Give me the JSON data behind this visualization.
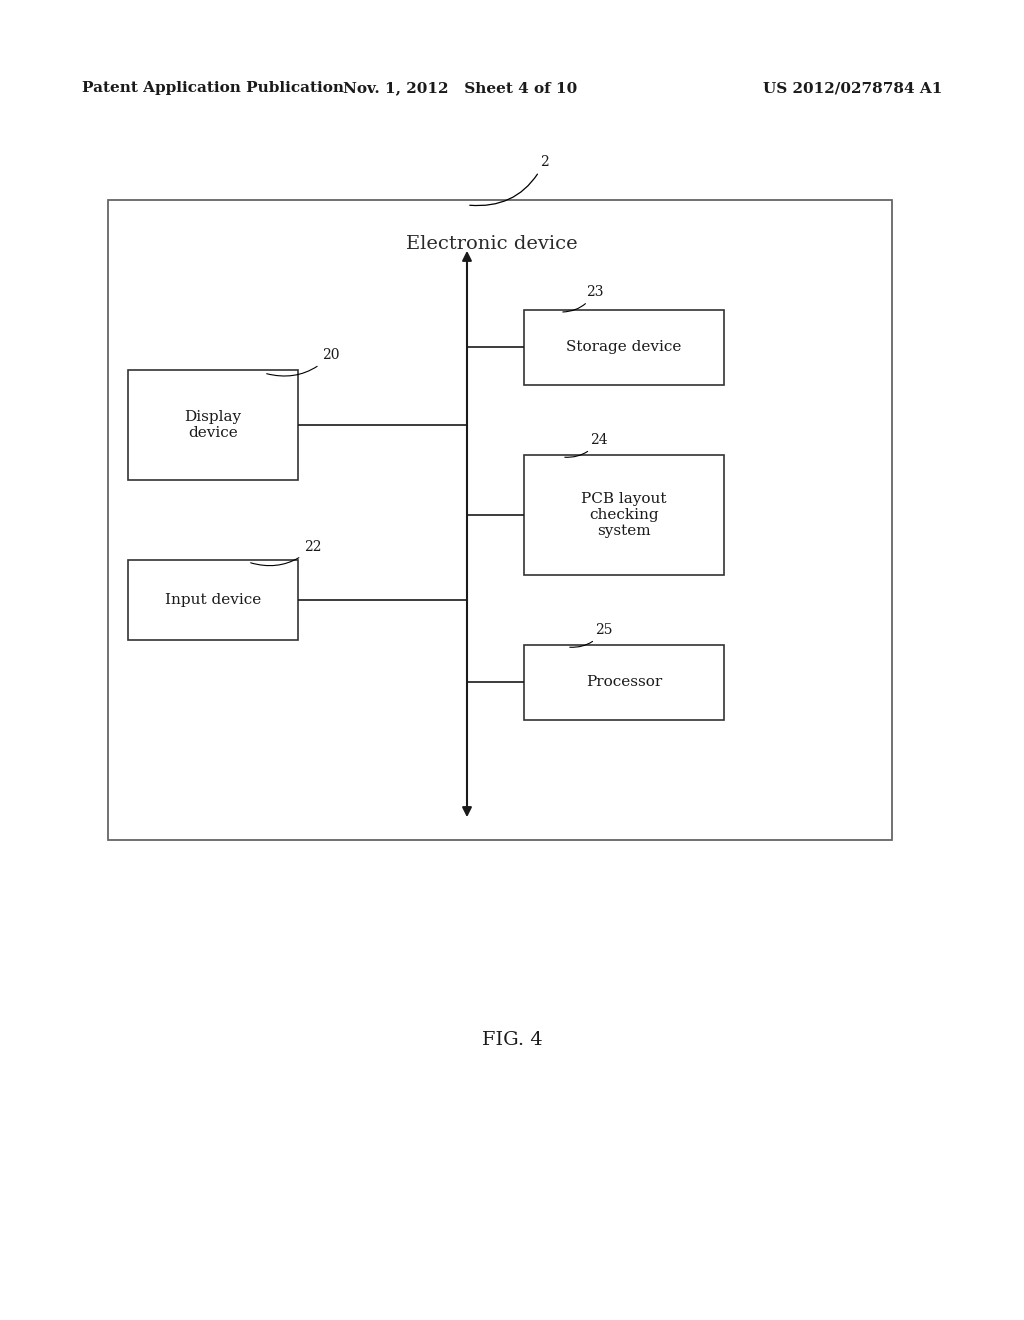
{
  "bg_color": "#ffffff",
  "header_left": "Patent Application Publication",
  "header_mid": "Nov. 1, 2012   Sheet 4 of 10",
  "header_right": "US 2012/0278784 A1",
  "fig_label": "FIG. 4",
  "outer_label": "Electronic device",
  "ref2_label": "2",
  "boxes": [
    {
      "label": "Display\ndevice",
      "ref": "20"
    },
    {
      "label": "Input device",
      "ref": "22"
    },
    {
      "label": "Storage device",
      "ref": "23"
    },
    {
      "label": "PCB layout\nchecking\nsystem",
      "ref": "24"
    },
    {
      "label": "Processor",
      "ref": "25"
    }
  ],
  "font_size_header": 11,
  "font_size_box": 11,
  "font_size_ref": 10,
  "font_size_outer_label": 14,
  "font_size_fig": 14
}
